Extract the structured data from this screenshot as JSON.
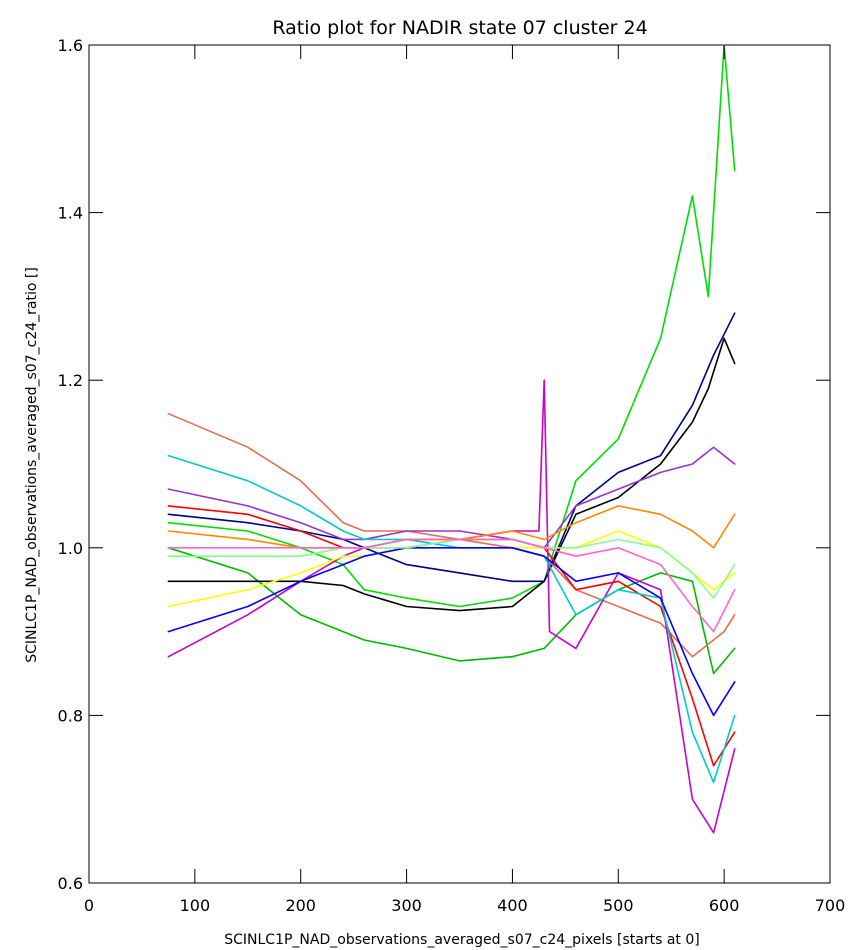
{
  "chart_data": {
    "type": "line",
    "title": "Ratio plot for NADIR state 07 cluster 24",
    "xlabel": "SCINLC1P_NAD_observations_averaged_s07_c24_pixels [starts at 0]",
    "ylabel": "SCINLC1P_NAD_observations_averaged_s07_c24_ratio []",
    "xlim": [
      0,
      700
    ],
    "ylim": [
      0.6,
      1.6
    ],
    "x_ticks": [
      "0",
      "100",
      "200",
      "300",
      "400",
      "500",
      "600",
      "700"
    ],
    "y_ticks": [
      "0.6",
      "0.8",
      "1.0",
      "1.2",
      "1.4",
      "1.6"
    ],
    "grid": false,
    "legend": "none",
    "series": [
      {
        "color": "#00dd00",
        "x": [
          75,
          150,
          200,
          240,
          260,
          300,
          350,
          400,
          430,
          460,
          500,
          540,
          570,
          585,
          600,
          610
        ],
        "y": [
          1.03,
          1.02,
          1.0,
          0.98,
          0.95,
          0.94,
          0.93,
          0.94,
          0.96,
          1.08,
          1.13,
          1.25,
          1.42,
          1.3,
          1.6,
          1.45
        ]
      },
      {
        "color": "#00bb00",
        "x": [
          75,
          150,
          200,
          240,
          260,
          300,
          350,
          400,
          430,
          460,
          500,
          540,
          570,
          590,
          610
        ],
        "y": [
          1.0,
          0.97,
          0.92,
          0.9,
          0.89,
          0.88,
          0.865,
          0.87,
          0.88,
          0.92,
          0.95,
          0.97,
          0.96,
          0.85,
          0.88
        ]
      },
      {
        "color": "#000000",
        "x": [
          75,
          150,
          200,
          240,
          260,
          300,
          350,
          400,
          430,
          460,
          500,
          540,
          570,
          585,
          600,
          610
        ],
        "y": [
          0.96,
          0.96,
          0.96,
          0.955,
          0.945,
          0.93,
          0.925,
          0.93,
          0.96,
          1.04,
          1.06,
          1.1,
          1.15,
          1.19,
          1.25,
          1.22
        ]
      },
      {
        "color": "#000088",
        "x": [
          75,
          150,
          200,
          240,
          260,
          300,
          350,
          400,
          430,
          460,
          500,
          540,
          570,
          590,
          610
        ],
        "y": [
          1.04,
          1.03,
          1.02,
          1.01,
          1.0,
          0.98,
          0.97,
          0.96,
          0.96,
          1.05,
          1.09,
          1.11,
          1.17,
          1.23,
          1.28
        ]
      },
      {
        "color": "#e07050",
        "x": [
          75,
          150,
          200,
          240,
          260,
          300,
          350,
          400,
          430,
          460,
          500,
          540,
          570,
          600,
          610
        ],
        "y": [
          1.16,
          1.12,
          1.08,
          1.03,
          1.02,
          1.02,
          1.01,
          1.0,
          0.99,
          0.95,
          0.93,
          0.91,
          0.87,
          0.9,
          0.92
        ]
      },
      {
        "color": "#cc00cc",
        "x": [
          75,
          150,
          200,
          240,
          260,
          300,
          350,
          400,
          425,
          430,
          435,
          460,
          500,
          540,
          570,
          590,
          610
        ],
        "y": [
          0.87,
          0.92,
          0.96,
          0.99,
          1.0,
          1.0,
          1.01,
          1.02,
          1.02,
          1.2,
          0.9,
          0.88,
          0.97,
          0.95,
          0.7,
          0.66,
          0.76
        ]
      },
      {
        "color": "#9933cc",
        "x": [
          75,
          150,
          200,
          240,
          260,
          300,
          350,
          400,
          430,
          460,
          500,
          540,
          570,
          590,
          610
        ],
        "y": [
          1.07,
          1.05,
          1.03,
          1.01,
          1.01,
          1.02,
          1.02,
          1.01,
          1.0,
          1.05,
          1.07,
          1.09,
          1.1,
          1.12,
          1.1
        ]
      },
      {
        "color": "#ff0000",
        "x": [
          75,
          150,
          200,
          240,
          260,
          300,
          350,
          400,
          430,
          460,
          500,
          540,
          570,
          590,
          610
        ],
        "y": [
          1.05,
          1.04,
          1.02,
          1.0,
          1.0,
          1.01,
          1.01,
          1.01,
          1.0,
          0.95,
          0.96,
          0.93,
          0.82,
          0.74,
          0.78
        ]
      },
      {
        "color": "#00cccc",
        "x": [
          75,
          150,
          200,
          240,
          260,
          300,
          350,
          400,
          430,
          460,
          500,
          540,
          570,
          590,
          610
        ],
        "y": [
          1.11,
          1.08,
          1.05,
          1.02,
          1.01,
          1.01,
          1.0,
          1.0,
          0.99,
          0.92,
          0.95,
          0.94,
          0.78,
          0.72,
          0.8
        ]
      },
      {
        "color": "#ffff00",
        "x": [
          75,
          150,
          200,
          240,
          260,
          300,
          350,
          400,
          430,
          460,
          500,
          540,
          570,
          590,
          610
        ],
        "y": [
          0.93,
          0.95,
          0.97,
          0.99,
          0.99,
          1.0,
          1.0,
          1.0,
          1.0,
          1.0,
          1.02,
          1.0,
          0.97,
          0.95,
          0.97
        ]
      },
      {
        "color": "#0000ff",
        "x": [
          75,
          150,
          200,
          240,
          260,
          300,
          350,
          400,
          430,
          460,
          500,
          540,
          570,
          590,
          610
        ],
        "y": [
          0.9,
          0.93,
          0.96,
          0.98,
          0.99,
          1.0,
          1.0,
          1.0,
          0.99,
          0.96,
          0.97,
          0.94,
          0.85,
          0.8,
          0.84
        ]
      },
      {
        "color": "#ff8800",
        "x": [
          75,
          150,
          200,
          240,
          260,
          300,
          350,
          400,
          430,
          460,
          500,
          540,
          570,
          590,
          610
        ],
        "y": [
          1.02,
          1.01,
          1.0,
          1.0,
          1.0,
          1.01,
          1.01,
          1.02,
          1.01,
          1.03,
          1.05,
          1.04,
          1.02,
          1.0,
          1.04
        ]
      },
      {
        "color": "#88ff88",
        "x": [
          75,
          150,
          200,
          240,
          260,
          300,
          350,
          400,
          430,
          460,
          500,
          540,
          570,
          590,
          610
        ],
        "y": [
          0.99,
          0.99,
          0.99,
          1.0,
          1.0,
          1.0,
          1.01,
          1.01,
          1.0,
          1.0,
          1.01,
          1.0,
          0.97,
          0.94,
          0.98
        ]
      },
      {
        "color": "#ff66cc",
        "x": [
          75,
          150,
          200,
          240,
          260,
          300,
          350,
          400,
          430,
          460,
          500,
          540,
          570,
          590,
          610
        ],
        "y": [
          1.0,
          1.0,
          1.0,
          1.0,
          1.0,
          1.01,
          1.01,
          1.01,
          1.0,
          0.99,
          1.0,
          0.98,
          0.93,
          0.9,
          0.95
        ]
      }
    ]
  }
}
